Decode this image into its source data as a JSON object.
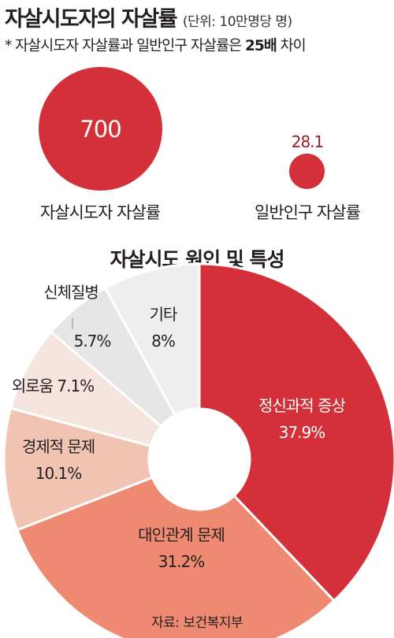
{
  "header": {
    "title": "자살시도자의 자살률",
    "unit": "(단위: 10만명당 명)",
    "subtitle_prefix": "* 자살시도자 자살률과 일반인구 자살률은 ",
    "subtitle_bold": "25배",
    "subtitle_suffix": " 차이"
  },
  "comparison": {
    "bubbles": [
      {
        "label": "자살시도자 자살률",
        "value": 700
      },
      {
        "label": "일반인구 자살률",
        "value": 28.1
      }
    ],
    "color": "#d3303a"
  },
  "chart_data": {
    "type": "pie",
    "title": "자살시도 원인 및 특성",
    "donut": true,
    "slices": [
      {
        "label": "정신과적 증상",
        "value": 37.9,
        "display": "37.9%",
        "color": "#d3303a"
      },
      {
        "label": "대인관계 문제",
        "value": 31.2,
        "display": "31.2%",
        "color": "#ef8a72"
      },
      {
        "label": "경제적 문제",
        "value": 10.1,
        "display": "10.1%",
        "color": "#f0c3b3"
      },
      {
        "label": "외로움",
        "value": 7.1,
        "display": "7.1%",
        "color": "#f6e4df"
      },
      {
        "label": "신체질병",
        "value": 5.7,
        "display": "5.7%",
        "color": "#e6e6e6"
      },
      {
        "label": "기타",
        "value": 8,
        "display": "8%",
        "color": "#eeeeee"
      }
    ]
  },
  "source": "자료: 보건복지부"
}
